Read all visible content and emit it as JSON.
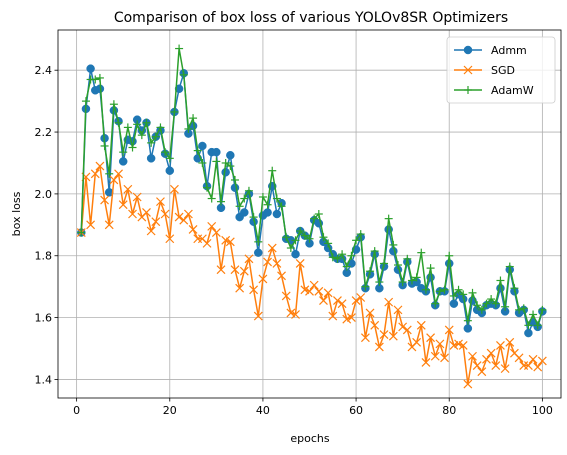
{
  "chart_data": {
    "type": "line",
    "title": "Comparison of box loss of various YOLOv8SR Optimizers",
    "xlabel": "epochs",
    "ylabel": "box loss",
    "xlim": [
      -4,
      104
    ],
    "ylim": [
      1.34,
      2.53
    ],
    "xticks": [
      0,
      20,
      40,
      60,
      80,
      100
    ],
    "yticks": [
      1.4,
      1.6,
      1.8,
      2.0,
      2.2,
      2.4
    ],
    "xtick_labels": [
      "0",
      "20",
      "40",
      "60",
      "80",
      "100"
    ],
    "ytick_labels": [
      "1.4",
      "1.6",
      "1.8",
      "2.0",
      "2.2",
      "2.4"
    ],
    "grid": true,
    "legend": "top-right",
    "x": [
      1,
      2,
      3,
      4,
      5,
      6,
      7,
      8,
      9,
      10,
      11,
      12,
      13,
      14,
      15,
      16,
      17,
      18,
      19,
      20,
      21,
      22,
      23,
      24,
      25,
      26,
      27,
      28,
      29,
      30,
      31,
      32,
      33,
      34,
      35,
      36,
      37,
      38,
      39,
      40,
      41,
      42,
      43,
      44,
      45,
      46,
      47,
      48,
      49,
      50,
      51,
      52,
      53,
      54,
      55,
      56,
      57,
      58,
      59,
      60,
      61,
      62,
      63,
      64,
      65,
      66,
      67,
      68,
      69,
      70,
      71,
      72,
      73,
      74,
      75,
      76,
      77,
      78,
      79,
      80,
      81,
      82,
      83,
      84,
      85,
      86,
      87,
      88,
      89,
      90,
      91,
      92,
      93,
      94,
      95,
      96,
      97,
      98,
      99,
      100
    ],
    "series": [
      {
        "name": "Admm",
        "color": "#1f77b4",
        "marker": "circle",
        "values": [
          1.875,
          2.275,
          2.405,
          2.335,
          2.34,
          2.18,
          2.005,
          2.27,
          2.235,
          2.105,
          2.175,
          2.17,
          2.24,
          2.205,
          2.23,
          2.115,
          2.185,
          2.205,
          2.13,
          2.075,
          2.265,
          2.34,
          2.39,
          2.195,
          2.22,
          2.115,
          2.155,
          2.025,
          2.135,
          2.135,
          1.955,
          2.07,
          2.125,
          2.02,
          1.925,
          1.94,
          2.0,
          1.91,
          1.81,
          1.93,
          1.94,
          2.025,
          1.935,
          1.97,
          1.855,
          1.85,
          1.805,
          1.88,
          1.865,
          1.84,
          1.915,
          1.905,
          1.845,
          1.825,
          1.805,
          1.79,
          1.79,
          1.745,
          1.775,
          1.82,
          1.86,
          1.695,
          1.74,
          1.805,
          1.695,
          1.765,
          1.885,
          1.815,
          1.755,
          1.705,
          1.78,
          1.71,
          1.715,
          1.695,
          1.685,
          1.73,
          1.64,
          1.685,
          1.685,
          1.775,
          1.645,
          1.675,
          1.66,
          1.565,
          1.655,
          1.625,
          1.615,
          1.64,
          1.645,
          1.64,
          1.695,
          1.62,
          1.755,
          1.685,
          1.615,
          1.625,
          1.55,
          1.585,
          1.57,
          1.62
        ]
      },
      {
        "name": "SGD",
        "color": "#ff7f0e",
        "marker": "x",
        "values": [
          1.875,
          2.055,
          1.9,
          2.065,
          2.09,
          1.98,
          1.9,
          2.045,
          2.065,
          1.965,
          2.015,
          1.935,
          1.99,
          1.925,
          1.94,
          1.88,
          1.91,
          1.975,
          1.935,
          1.855,
          2.015,
          1.925,
          1.915,
          1.935,
          1.885,
          1.855,
          1.855,
          1.84,
          1.895,
          1.875,
          1.755,
          1.85,
          1.845,
          1.755,
          1.695,
          1.75,
          1.79,
          1.69,
          1.605,
          1.725,
          1.78,
          1.825,
          1.775,
          1.735,
          1.67,
          1.615,
          1.61,
          1.775,
          1.69,
          1.685,
          1.705,
          1.685,
          1.655,
          1.68,
          1.605,
          1.655,
          1.645,
          1.595,
          1.6,
          1.655,
          1.665,
          1.535,
          1.615,
          1.575,
          1.505,
          1.545,
          1.65,
          1.54,
          1.625,
          1.57,
          1.56,
          1.505,
          1.52,
          1.575,
          1.455,
          1.535,
          1.475,
          1.515,
          1.47,
          1.56,
          1.51,
          1.515,
          1.51,
          1.385,
          1.475,
          1.445,
          1.425,
          1.465,
          1.485,
          1.445,
          1.51,
          1.435,
          1.52,
          1.485,
          1.47,
          1.445,
          1.445,
          1.465,
          1.44,
          1.46
        ]
      },
      {
        "name": "AdamW",
        "color": "#2ca02c",
        "marker": "plus",
        "values": [
          1.875,
          2.3,
          2.37,
          2.37,
          2.375,
          2.155,
          2.065,
          2.29,
          2.23,
          2.135,
          2.215,
          2.15,
          2.225,
          2.19,
          2.23,
          2.165,
          2.185,
          2.215,
          2.135,
          2.115,
          2.265,
          2.47,
          2.385,
          2.21,
          2.245,
          2.14,
          2.1,
          2.02,
          1.985,
          2.105,
          1.975,
          2.1,
          2.09,
          2.045,
          1.96,
          1.985,
          2.01,
          1.925,
          1.845,
          1.99,
          1.965,
          2.075,
          1.985,
          1.96,
          1.86,
          1.825,
          1.85,
          1.88,
          1.865,
          1.855,
          1.92,
          1.935,
          1.86,
          1.84,
          1.795,
          1.79,
          1.805,
          1.765,
          1.8,
          1.85,
          1.87,
          1.7,
          1.75,
          1.815,
          1.715,
          1.775,
          1.92,
          1.835,
          1.77,
          1.715,
          1.79,
          1.72,
          1.73,
          1.81,
          1.69,
          1.76,
          1.645,
          1.685,
          1.69,
          1.8,
          1.67,
          1.69,
          1.675,
          1.59,
          1.68,
          1.64,
          1.625,
          1.645,
          1.66,
          1.645,
          1.72,
          1.635,
          1.765,
          1.695,
          1.625,
          1.63,
          1.575,
          1.61,
          1.575,
          1.625
        ]
      }
    ]
  }
}
